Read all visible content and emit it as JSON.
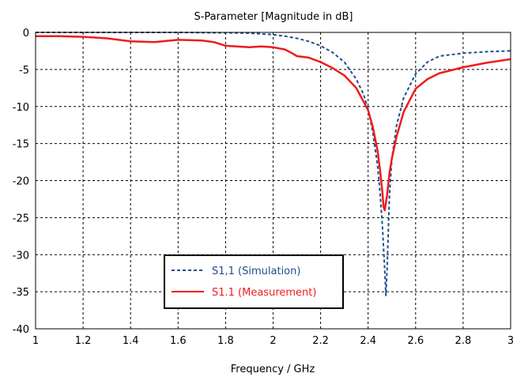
{
  "chart_data": {
    "type": "line",
    "title": "S-Parameter [Magnitude in dB]",
    "xlabel": "Frequency / GHz",
    "ylabel": "",
    "xlim": [
      1,
      3
    ],
    "ylim": [
      -40,
      0
    ],
    "xticks": [
      1,
      1.2,
      1.4,
      1.6,
      1.8,
      2,
      2.2,
      2.4,
      2.6,
      2.8,
      3
    ],
    "xtick_labels": [
      "1",
      "1.2",
      "1.4",
      "1.6",
      "1.8",
      "2",
      "2.2",
      "2.4",
      "2.6",
      "2.8",
      "3"
    ],
    "yticks": [
      0,
      -5,
      -10,
      -15,
      -20,
      -25,
      -30,
      -35,
      -40
    ],
    "ytick_labels": [
      "0",
      "-5",
      "-10",
      "-15",
      "-20",
      "-25",
      "-30",
      "-35",
      "-40"
    ],
    "grid": true,
    "legend_position": "bottom-center",
    "series": [
      {
        "name": "S1,1 (Simulation)",
        "color": "#1f4e8c",
        "style": "dashed",
        "x": [
          1.0,
          1.2,
          1.4,
          1.6,
          1.8,
          1.9,
          1.95,
          2.0,
          2.05,
          2.1,
          2.15,
          2.2,
          2.25,
          2.3,
          2.35,
          2.38,
          2.4,
          2.42,
          2.44,
          2.45,
          2.46,
          2.47,
          2.475,
          2.48,
          2.49,
          2.5,
          2.52,
          2.55,
          2.6,
          2.65,
          2.7,
          2.8,
          2.9,
          3.0
        ],
        "y": [
          0,
          0,
          0,
          0,
          -0.05,
          -0.1,
          -0.2,
          -0.3,
          -0.5,
          -0.8,
          -1.2,
          -1.8,
          -2.7,
          -4.0,
          -6.3,
          -8.3,
          -10.3,
          -13.5,
          -18.0,
          -21.5,
          -26.0,
          -32.0,
          -35.5,
          -32.0,
          -22.0,
          -17.0,
          -12.5,
          -8.8,
          -5.6,
          -4.0,
          -3.2,
          -2.8,
          -2.6,
          -2.5
        ]
      },
      {
        "name": "S1.1 (Measurement)",
        "color": "#ee1c1c",
        "style": "solid",
        "x": [
          1.0,
          1.1,
          1.2,
          1.3,
          1.4,
          1.5,
          1.6,
          1.7,
          1.75,
          1.8,
          1.9,
          1.95,
          2.0,
          2.05,
          2.08,
          2.1,
          2.15,
          2.2,
          2.25,
          2.3,
          2.35,
          2.4,
          2.42,
          2.44,
          2.45,
          2.46,
          2.465,
          2.47,
          2.48,
          2.49,
          2.5,
          2.52,
          2.55,
          2.6,
          2.65,
          2.7,
          2.8,
          2.9,
          3.0
        ],
        "y": [
          -0.5,
          -0.5,
          -0.6,
          -0.8,
          -1.2,
          -1.3,
          -1.0,
          -1.1,
          -1.3,
          -1.8,
          -2.0,
          -1.9,
          -2.0,
          -2.3,
          -2.8,
          -3.2,
          -3.4,
          -4.0,
          -4.8,
          -5.8,
          -7.5,
          -10.5,
          -12.8,
          -16.0,
          -18.5,
          -21.5,
          -23.5,
          -24.0,
          -22.0,
          -19.0,
          -17.0,
          -14.0,
          -10.7,
          -7.6,
          -6.3,
          -5.5,
          -4.7,
          -4.1,
          -3.6
        ]
      }
    ]
  }
}
